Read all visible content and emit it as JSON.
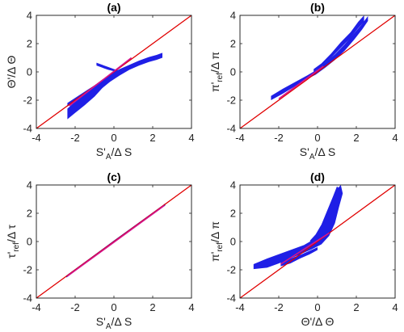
{
  "chart_data": [
    {
      "id": "a",
      "type": "scatter",
      "title": "(a)",
      "xlabel": {
        "base": "S'",
        "sub": "A",
        "tail": "/Δ S"
      },
      "ylabel": {
        "base": "Θ'/Δ Θ",
        "sub": "",
        "tail": ""
      },
      "xlim": [
        -4,
        4
      ],
      "ylim": [
        -4,
        4
      ],
      "xticks": [
        "-4",
        "-2",
        "0",
        "2",
        "4"
      ],
      "yticks": [
        "-4",
        "-2",
        "0",
        "2",
        "4"
      ],
      "grid": false,
      "reference_line": {
        "x": [
          -4,
          4
        ],
        "y": [
          -4,
          4
        ],
        "color": "#e00000"
      },
      "fit_line": {
        "x": [
          -2.3,
          0.9
        ],
        "y": [
          -2.4,
          1.0
        ],
        "color": "#d4148c"
      },
      "scatter_color": "#1f1fe6",
      "bands": [
        {
          "upper": [
            [
              -2.4,
              -2.6
            ],
            [
              -2.0,
              -2.1
            ],
            [
              -1.5,
              -1.6
            ],
            [
              -1.0,
              -1.1
            ],
            [
              -0.6,
              -0.6
            ],
            [
              -0.2,
              -0.15
            ],
            [
              0.3,
              0.2
            ],
            [
              0.8,
              0.5
            ],
            [
              1.3,
              0.8
            ],
            [
              1.8,
              1.05
            ],
            [
              2.2,
              1.2
            ],
            [
              2.5,
              1.35
            ]
          ],
          "lower": [
            [
              2.5,
              1.0
            ],
            [
              2.2,
              0.85
            ],
            [
              1.8,
              0.7
            ],
            [
              1.3,
              0.45
            ],
            [
              0.8,
              0.15
            ],
            [
              0.3,
              -0.25
            ],
            [
              -0.2,
              -0.7
            ],
            [
              -0.6,
              -1.15
            ],
            [
              -1.0,
              -1.75
            ],
            [
              -1.5,
              -2.35
            ],
            [
              -2.0,
              -2.9
            ],
            [
              -2.4,
              -3.35
            ]
          ]
        },
        {
          "upper": [
            [
              -2.4,
              -2.2
            ],
            [
              -1.9,
              -1.75
            ],
            [
              -1.4,
              -1.3
            ],
            [
              -1.0,
              -0.95
            ],
            [
              -0.6,
              -0.55
            ],
            [
              -0.2,
              -0.25
            ]
          ],
          "lower": [
            [
              -0.2,
              -0.35
            ],
            [
              -0.6,
              -0.75
            ],
            [
              -1.0,
              -1.25
            ],
            [
              -1.4,
              -1.65
            ],
            [
              -1.9,
              -2.05
            ],
            [
              -2.4,
              -2.45
            ]
          ]
        },
        {
          "upper": [
            [
              -0.9,
              0.65
            ],
            [
              -0.6,
              0.5
            ],
            [
              -0.3,
              0.35
            ],
            [
              0.0,
              0.2
            ],
            [
              0.4,
              0.05
            ]
          ],
          "lower": [
            [
              0.4,
              -0.05
            ],
            [
              0.0,
              0.05
            ],
            [
              -0.3,
              0.15
            ],
            [
              -0.6,
              0.3
            ],
            [
              -0.9,
              0.45
            ]
          ]
        }
      ]
    },
    {
      "id": "b",
      "type": "scatter",
      "title": "(b)",
      "xlabel": {
        "base": "S'",
        "sub": "A",
        "tail": "/Δ S"
      },
      "ylabel": {
        "base": "π'",
        "sub": "ref",
        "tail": "/Δ π"
      },
      "xlim": [
        -4,
        4
      ],
      "ylim": [
        -4,
        4
      ],
      "xticks": [
        "-4",
        "-2",
        "0",
        "2",
        "4"
      ],
      "yticks": [
        "-4",
        "-2",
        "0",
        "2",
        "4"
      ],
      "grid": false,
      "reference_line": {
        "x": [
          -4,
          4
        ],
        "y": [
          -4,
          4
        ],
        "color": "#e00000"
      },
      "fit_line": {
        "x": [
          -2.0,
          0.3
        ],
        "y": [
          -1.9,
          0.4
        ],
        "color": "#d4148c"
      },
      "scatter_color": "#1f1fe6",
      "bands": [
        {
          "upper": [
            [
              -2.4,
              -1.7
            ],
            [
              -1.8,
              -1.2
            ],
            [
              -1.2,
              -0.75
            ],
            [
              -0.6,
              -0.3
            ],
            [
              -0.1,
              0.1
            ],
            [
              0.4,
              0.65
            ],
            [
              0.9,
              1.25
            ],
            [
              1.4,
              1.95
            ],
            [
              1.9,
              2.75
            ],
            [
              2.3,
              3.4
            ],
            [
              2.6,
              3.95
            ]
          ],
          "lower": [
            [
              2.6,
              3.6
            ],
            [
              2.3,
              3.0
            ],
            [
              1.9,
              2.3
            ],
            [
              1.4,
              1.5
            ],
            [
              0.9,
              0.85
            ],
            [
              0.4,
              0.3
            ],
            [
              -0.1,
              -0.2
            ],
            [
              -0.6,
              -0.55
            ],
            [
              -1.2,
              -1.05
            ],
            [
              -1.8,
              -1.55
            ],
            [
              -2.4,
              -2.0
            ]
          ]
        },
        {
          "upper": [
            [
              -0.2,
              0.2
            ],
            [
              0.2,
              0.6
            ],
            [
              0.7,
              1.3
            ],
            [
              1.2,
              2.1
            ],
            [
              1.7,
              2.8
            ],
            [
              2.1,
              3.55
            ],
            [
              2.4,
              4.0
            ]
          ],
          "lower": [
            [
              2.4,
              3.55
            ],
            [
              2.1,
              3.1
            ],
            [
              1.7,
              2.4
            ],
            [
              1.2,
              1.7
            ],
            [
              0.7,
              1.0
            ],
            [
              0.2,
              0.4
            ],
            [
              -0.2,
              0.0
            ]
          ]
        }
      ]
    },
    {
      "id": "c",
      "type": "scatter",
      "title": "(c)",
      "xlabel": {
        "base": "S'",
        "sub": "A",
        "tail": "/Δ S"
      },
      "ylabel": {
        "base": "τ'",
        "sub": "ref",
        "tail": "/Δ τ"
      },
      "xlim": [
        -4,
        4
      ],
      "ylim": [
        -4,
        4
      ],
      "xticks": [
        "-4",
        "-2",
        "0",
        "2",
        "4"
      ],
      "yticks": [
        "-4",
        "-2",
        "0",
        "2",
        "4"
      ],
      "grid": false,
      "reference_line": {
        "x": [
          -4,
          4
        ],
        "y": [
          -4,
          4
        ],
        "color": "#e00000"
      },
      "fit_line": {
        "x": [
          -2.4,
          2.6
        ],
        "y": [
          -2.45,
          2.55
        ],
        "color": "#d4148c"
      },
      "scatter_color": "#1f1fe6",
      "bands": [
        {
          "upper": [
            [
              -2.45,
              -2.4
            ],
            [
              0.0,
              0.07
            ],
            [
              2.65,
              2.7
            ]
          ],
          "lower": [
            [
              2.65,
              2.55
            ],
            [
              0.0,
              -0.07
            ],
            [
              -2.45,
              -2.55
            ]
          ]
        }
      ]
    },
    {
      "id": "d",
      "type": "scatter",
      "title": "(d)",
      "xlabel": {
        "base": "Θ'/Δ Θ",
        "sub": "",
        "tail": ""
      },
      "ylabel": {
        "base": "π'",
        "sub": "ref",
        "tail": "/Δ π"
      },
      "xlim": [
        -4,
        4
      ],
      "ylim": [
        -4,
        4
      ],
      "xticks": [
        "-4",
        "-2",
        "0",
        "2",
        "4"
      ],
      "yticks": [
        "-4",
        "-2",
        "0",
        "2",
        "4"
      ],
      "grid": false,
      "reference_line": {
        "x": [
          -4,
          4
        ],
        "y": [
          -4,
          4
        ],
        "color": "#e00000"
      },
      "fit_line": {
        "x": [
          -1.9,
          0.6
        ],
        "y": [
          -1.6,
          0.6
        ],
        "color": "#d4148c"
      },
      "scatter_color": "#1f1fe6",
      "bands": [
        {
          "upper": [
            [
              -3.3,
              -1.6
            ],
            [
              -2.6,
              -1.2
            ],
            [
              -1.9,
              -0.85
            ],
            [
              -1.3,
              -0.55
            ],
            [
              -0.7,
              -0.25
            ],
            [
              -0.2,
              0.15
            ],
            [
              0.2,
              0.9
            ],
            [
              0.5,
              1.9
            ],
            [
              0.8,
              3.0
            ],
            [
              1.0,
              3.7
            ],
            [
              1.2,
              4.0
            ]
          ],
          "lower": [
            [
              1.3,
              3.4
            ],
            [
              1.1,
              2.4
            ],
            [
              0.9,
              1.3
            ],
            [
              0.6,
              0.4
            ],
            [
              0.2,
              -0.2
            ],
            [
              -0.3,
              -0.55
            ],
            [
              -0.8,
              -0.85
            ],
            [
              -1.4,
              -1.2
            ],
            [
              -2.0,
              -1.55
            ],
            [
              -2.6,
              -1.85
            ],
            [
              -3.3,
              -1.95
            ]
          ]
        },
        {
          "upper": [
            [
              -1.9,
              -1.35
            ],
            [
              -1.4,
              -1.2
            ],
            [
              -0.9,
              -0.95
            ],
            [
              -0.4,
              -0.65
            ],
            [
              0.0,
              -0.4
            ]
          ],
          "lower": [
            [
              0.0,
              -0.6
            ],
            [
              -0.4,
              -0.9
            ],
            [
              -0.9,
              -1.2
            ],
            [
              -1.4,
              -1.55
            ],
            [
              -1.9,
              -1.75
            ]
          ]
        },
        {
          "upper": [
            [
              -0.4,
              0.05
            ],
            [
              -0.1,
              0.5
            ],
            [
              0.2,
              1.2
            ],
            [
              0.5,
              2.2
            ],
            [
              0.8,
              3.2
            ],
            [
              1.0,
              3.9
            ]
          ],
          "lower": [
            [
              1.15,
              3.7
            ],
            [
              0.95,
              2.9
            ],
            [
              0.7,
              1.9
            ],
            [
              0.4,
              1.0
            ],
            [
              0.1,
              0.3
            ],
            [
              -0.2,
              -0.15
            ]
          ]
        }
      ]
    }
  ]
}
